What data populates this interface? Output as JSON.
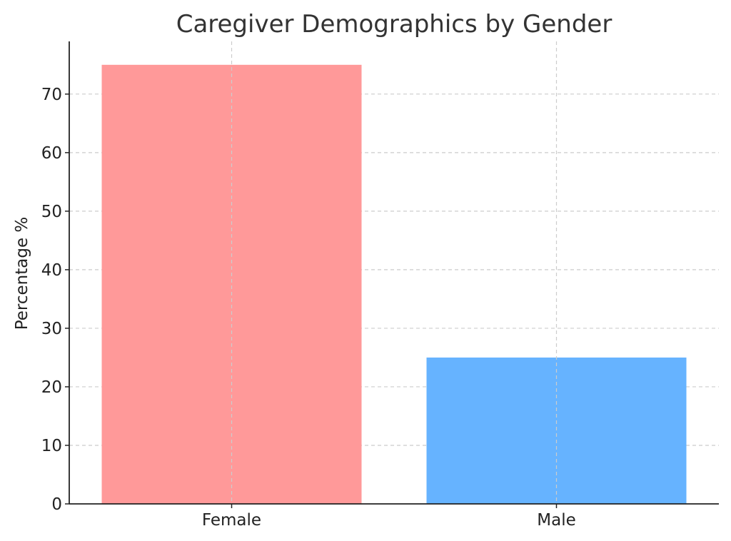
{
  "chart_data": {
    "type": "bar",
    "title": "Caregiver Demographics by Gender",
    "xlabel": "",
    "ylabel": "Percentage %",
    "categories": [
      "Female",
      "Male"
    ],
    "values": [
      75,
      25
    ],
    "colors": [
      "#ff9999",
      "#66b3ff"
    ],
    "ylim": [
      0,
      79
    ],
    "yticks": [
      0,
      10,
      20,
      30,
      40,
      50,
      60,
      70
    ],
    "grid": true
  }
}
